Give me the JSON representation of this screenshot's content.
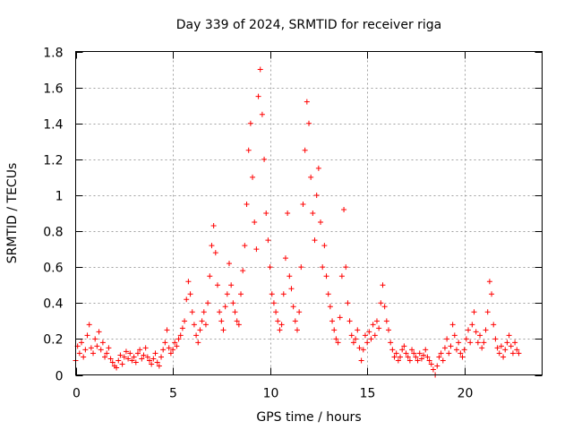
{
  "chart_data": {
    "type": "scatter",
    "title": "Day 339 of 2024, SRMTID for receiver riga",
    "xlabel": "GPS time / hours",
    "ylabel": "SRMTID / TECUs",
    "xlim": [
      0,
      24
    ],
    "ylim": [
      0,
      1.8
    ],
    "xticks": [
      0,
      5,
      10,
      15,
      20
    ],
    "xtick_labels": [
      "0",
      "5",
      "10",
      "15",
      "20"
    ],
    "yticks": [
      0,
      0.2,
      0.4,
      0.6,
      0.8,
      1,
      1.2,
      1.4,
      1.6,
      1.8
    ],
    "ytick_labels": [
      "0",
      "0.2",
      "0.4",
      "0.6",
      "0.8",
      "1",
      "1.2",
      "1.4",
      "1.6",
      "1.8"
    ],
    "grid": true,
    "marker": "+",
    "series_color": "#ff0000",
    "series": [
      {
        "name": "SRMTID",
        "points": [
          [
            0.0,
            0.08
          ],
          [
            0.1,
            0.16
          ],
          [
            0.2,
            0.12
          ],
          [
            0.3,
            0.18
          ],
          [
            0.4,
            0.1
          ],
          [
            0.5,
            0.14
          ],
          [
            0.6,
            0.22
          ],
          [
            0.7,
            0.28
          ],
          [
            0.8,
            0.15
          ],
          [
            0.9,
            0.12
          ],
          [
            1.0,
            0.2
          ],
          [
            1.1,
            0.16
          ],
          [
            1.2,
            0.24
          ],
          [
            1.3,
            0.14
          ],
          [
            1.4,
            0.18
          ],
          [
            1.5,
            0.1
          ],
          [
            1.6,
            0.12
          ],
          [
            1.7,
            0.15
          ],
          [
            1.8,
            0.09
          ],
          [
            1.9,
            0.07
          ],
          [
            2.0,
            0.05
          ],
          [
            2.1,
            0.04
          ],
          [
            2.2,
            0.08
          ],
          [
            2.3,
            0.11
          ],
          [
            2.4,
            0.06
          ],
          [
            2.5,
            0.1
          ],
          [
            2.6,
            0.13
          ],
          [
            2.7,
            0.09
          ],
          [
            2.8,
            0.12
          ],
          [
            2.9,
            0.08
          ],
          [
            3.0,
            0.1
          ],
          [
            3.1,
            0.07
          ],
          [
            3.2,
            0.12
          ],
          [
            3.3,
            0.14
          ],
          [
            3.4,
            0.09
          ],
          [
            3.5,
            0.11
          ],
          [
            3.6,
            0.15
          ],
          [
            3.7,
            0.1
          ],
          [
            3.8,
            0.08
          ],
          [
            3.9,
            0.06
          ],
          [
            4.0,
            0.09
          ],
          [
            4.1,
            0.12
          ],
          [
            4.2,
            0.07
          ],
          [
            4.3,
            0.05
          ],
          [
            4.4,
            0.1
          ],
          [
            4.5,
            0.14
          ],
          [
            4.6,
            0.18
          ],
          [
            4.7,
            0.25
          ],
          [
            4.8,
            0.15
          ],
          [
            4.9,
            0.12
          ],
          [
            5.0,
            0.14
          ],
          [
            5.1,
            0.18
          ],
          [
            5.2,
            0.16
          ],
          [
            5.3,
            0.2
          ],
          [
            5.4,
            0.22
          ],
          [
            5.5,
            0.26
          ],
          [
            5.6,
            0.3
          ],
          [
            5.7,
            0.42
          ],
          [
            5.8,
            0.52
          ],
          [
            5.9,
            0.45
          ],
          [
            6.0,
            0.35
          ],
          [
            6.1,
            0.28
          ],
          [
            6.2,
            0.22
          ],
          [
            6.3,
            0.18
          ],
          [
            6.4,
            0.25
          ],
          [
            6.5,
            0.3
          ],
          [
            6.6,
            0.35
          ],
          [
            6.7,
            0.28
          ],
          [
            6.8,
            0.4
          ],
          [
            6.9,
            0.55
          ],
          [
            7.0,
            0.72
          ],
          [
            7.1,
            0.83
          ],
          [
            7.2,
            0.68
          ],
          [
            7.3,
            0.5
          ],
          [
            7.4,
            0.35
          ],
          [
            7.5,
            0.3
          ],
          [
            7.6,
            0.25
          ],
          [
            7.7,
            0.38
          ],
          [
            7.8,
            0.45
          ],
          [
            7.9,
            0.62
          ],
          [
            8.0,
            0.5
          ],
          [
            8.1,
            0.4
          ],
          [
            8.2,
            0.35
          ],
          [
            8.3,
            0.3
          ],
          [
            8.4,
            0.28
          ],
          [
            8.5,
            0.45
          ],
          [
            8.6,
            0.58
          ],
          [
            8.7,
            0.72
          ],
          [
            8.8,
            0.95
          ],
          [
            8.9,
            1.25
          ],
          [
            9.0,
            1.4
          ],
          [
            9.1,
            1.1
          ],
          [
            9.2,
            0.85
          ],
          [
            9.3,
            0.7
          ],
          [
            9.4,
            1.55
          ],
          [
            9.5,
            1.7
          ],
          [
            9.6,
            1.45
          ],
          [
            9.7,
            1.2
          ],
          [
            9.8,
            0.9
          ],
          [
            9.9,
            0.75
          ],
          [
            10.0,
            0.6
          ],
          [
            10.1,
            0.45
          ],
          [
            10.2,
            0.4
          ],
          [
            10.3,
            0.35
          ],
          [
            10.4,
            0.3
          ],
          [
            10.5,
            0.25
          ],
          [
            10.6,
            0.28
          ],
          [
            10.7,
            0.45
          ],
          [
            10.8,
            0.65
          ],
          [
            10.9,
            0.9
          ],
          [
            11.0,
            0.55
          ],
          [
            11.1,
            0.48
          ],
          [
            11.2,
            0.38
          ],
          [
            11.3,
            0.3
          ],
          [
            11.4,
            0.25
          ],
          [
            11.5,
            0.35
          ],
          [
            11.6,
            0.6
          ],
          [
            11.7,
            0.95
          ],
          [
            11.8,
            1.25
          ],
          [
            11.9,
            1.52
          ],
          [
            12.0,
            1.4
          ],
          [
            12.1,
            1.1
          ],
          [
            12.2,
            0.9
          ],
          [
            12.3,
            0.75
          ],
          [
            12.4,
            1.0
          ],
          [
            12.5,
            1.15
          ],
          [
            12.6,
            0.85
          ],
          [
            12.7,
            0.6
          ],
          [
            12.8,
            0.72
          ],
          [
            12.9,
            0.55
          ],
          [
            13.0,
            0.45
          ],
          [
            13.1,
            0.38
          ],
          [
            13.2,
            0.3
          ],
          [
            13.3,
            0.25
          ],
          [
            13.4,
            0.2
          ],
          [
            13.5,
            0.18
          ],
          [
            13.6,
            0.32
          ],
          [
            13.7,
            0.55
          ],
          [
            13.8,
            0.92
          ],
          [
            13.9,
            0.6
          ],
          [
            14.0,
            0.4
          ],
          [
            14.1,
            0.3
          ],
          [
            14.2,
            0.22
          ],
          [
            14.3,
            0.18
          ],
          [
            14.4,
            0.2
          ],
          [
            14.5,
            0.25
          ],
          [
            14.6,
            0.15
          ],
          [
            14.7,
            0.08
          ],
          [
            14.8,
            0.14
          ],
          [
            14.9,
            0.22
          ],
          [
            15.0,
            0.18
          ],
          [
            15.1,
            0.24
          ],
          [
            15.2,
            0.2
          ],
          [
            15.3,
            0.28
          ],
          [
            15.4,
            0.22
          ],
          [
            15.5,
            0.3
          ],
          [
            15.6,
            0.26
          ],
          [
            15.7,
            0.4
          ],
          [
            15.8,
            0.5
          ],
          [
            15.9,
            0.38
          ],
          [
            16.0,
            0.3
          ],
          [
            16.1,
            0.25
          ],
          [
            16.2,
            0.18
          ],
          [
            16.3,
            0.14
          ],
          [
            16.4,
            0.1
          ],
          [
            16.5,
            0.12
          ],
          [
            16.6,
            0.08
          ],
          [
            16.7,
            0.1
          ],
          [
            16.8,
            0.14
          ],
          [
            16.9,
            0.16
          ],
          [
            17.0,
            0.12
          ],
          [
            17.1,
            0.1
          ],
          [
            17.2,
            0.08
          ],
          [
            17.3,
            0.14
          ],
          [
            17.4,
            0.12
          ],
          [
            17.5,
            0.1
          ],
          [
            17.6,
            0.08
          ],
          [
            17.7,
            0.12
          ],
          [
            17.8,
            0.09
          ],
          [
            17.9,
            0.11
          ],
          [
            18.0,
            0.14
          ],
          [
            18.1,
            0.1
          ],
          [
            18.2,
            0.08
          ],
          [
            18.3,
            0.06
          ],
          [
            18.4,
            0.03
          ],
          [
            18.5,
            0.0
          ],
          [
            18.6,
            0.05
          ],
          [
            18.7,
            0.1
          ],
          [
            18.8,
            0.12
          ],
          [
            18.9,
            0.08
          ],
          [
            19.0,
            0.15
          ],
          [
            19.1,
            0.2
          ],
          [
            19.2,
            0.12
          ],
          [
            19.3,
            0.16
          ],
          [
            19.4,
            0.28
          ],
          [
            19.5,
            0.22
          ],
          [
            19.6,
            0.14
          ],
          [
            19.7,
            0.18
          ],
          [
            19.8,
            0.12
          ],
          [
            19.9,
            0.1
          ],
          [
            20.0,
            0.14
          ],
          [
            20.1,
            0.2
          ],
          [
            20.2,
            0.25
          ],
          [
            20.3,
            0.18
          ],
          [
            20.4,
            0.28
          ],
          [
            20.5,
            0.35
          ],
          [
            20.6,
            0.24
          ],
          [
            20.7,
            0.18
          ],
          [
            20.8,
            0.22
          ],
          [
            20.9,
            0.15
          ],
          [
            21.0,
            0.18
          ],
          [
            21.1,
            0.25
          ],
          [
            21.2,
            0.35
          ],
          [
            21.3,
            0.52
          ],
          [
            21.4,
            0.45
          ],
          [
            21.5,
            0.28
          ],
          [
            21.6,
            0.2
          ],
          [
            21.7,
            0.15
          ],
          [
            21.8,
            0.12
          ],
          [
            21.9,
            0.16
          ],
          [
            22.0,
            0.1
          ],
          [
            22.1,
            0.14
          ],
          [
            22.2,
            0.18
          ],
          [
            22.3,
            0.22
          ],
          [
            22.4,
            0.16
          ],
          [
            22.5,
            0.12
          ],
          [
            22.6,
            0.18
          ],
          [
            22.7,
            0.14
          ],
          [
            22.8,
            0.12
          ]
        ]
      }
    ]
  }
}
